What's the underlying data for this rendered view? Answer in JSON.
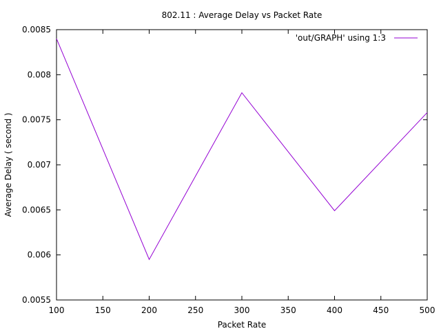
{
  "chart_data": {
    "type": "line",
    "title": "802.11 : Average Delay vs Packet Rate",
    "xlabel": "Packet Rate",
    "ylabel": "Average Delay ( second )",
    "xlim": [
      100,
      500
    ],
    "ylim": [
      0.0055,
      0.0085
    ],
    "xticks": [
      "100",
      "150",
      "200",
      "250",
      "300",
      "350",
      "400",
      "450",
      "500"
    ],
    "yticks": [
      "0.0055",
      "0.006",
      "0.0065",
      "0.007",
      "0.0075",
      "0.008",
      "0.0085"
    ],
    "grid": false,
    "legend_position": "top-right",
    "series": [
      {
        "name": "'out/GRAPH' using 1:3",
        "color": "#9400d3",
        "x": [
          100,
          200,
          300,
          400,
          500
        ],
        "y": [
          0.0084,
          0.00595,
          0.0078,
          0.00649,
          0.00758
        ]
      }
    ]
  }
}
